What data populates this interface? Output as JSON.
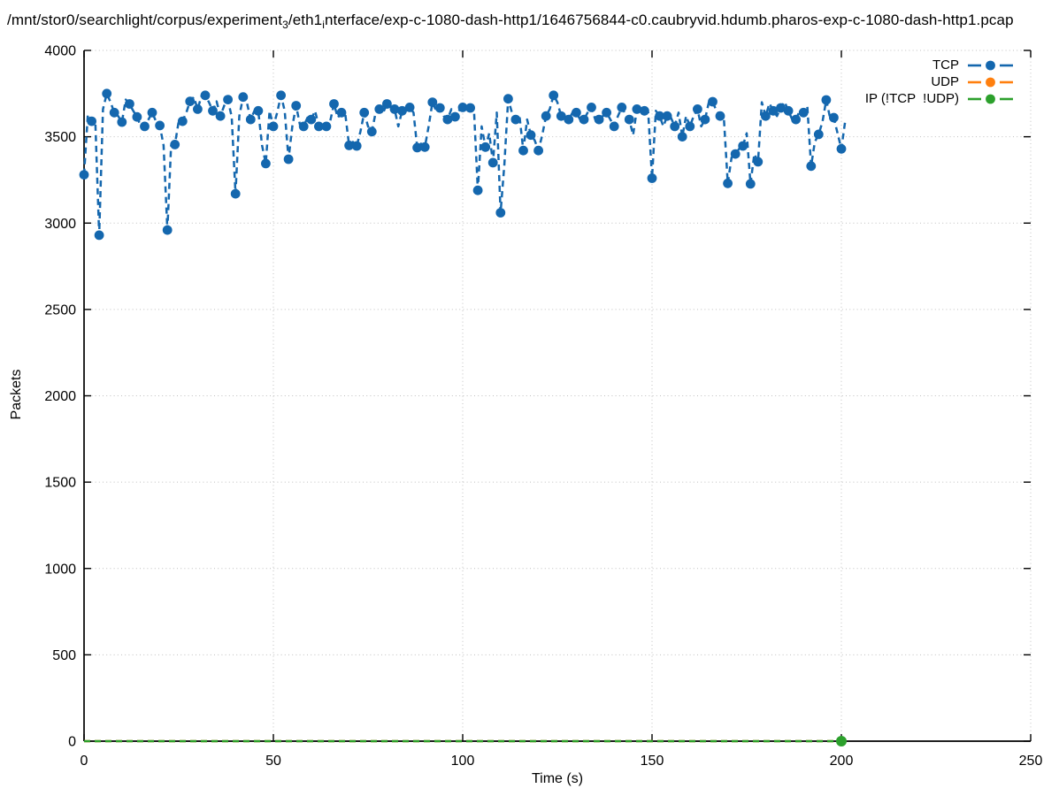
{
  "header": {
    "title_parts": {
      "p1": "/mnt/stor0/searchlight/corpus/experiment",
      "sub1": "3",
      "p2": "/eth1",
      "sub2": "i",
      "p3": "nterface/exp-c-1080-dash-http1/1646756844-c0.caubryvid.hdumb.pharos-exp-c-1080-dash-http1.pcap"
    }
  },
  "chart_data": {
    "type": "line",
    "title": "/mnt/stor0/searchlight/corpus/experiment_3/eth1_interface/exp-c-1080-dash-http1/1646756844-c0.caubryvid.hdumb.pharos-exp-c-1080-dash-http1.pcap",
    "xlabel": "Time (s)",
    "ylabel": "Packets",
    "xlim": [
      0,
      250
    ],
    "ylim": [
      0,
      4000
    ],
    "xticks": [
      0,
      50,
      100,
      150,
      200,
      250
    ],
    "yticks": [
      0,
      500,
      1000,
      1500,
      2000,
      2500,
      3000,
      3500,
      4000
    ],
    "grid": true,
    "grid_color": "#bfbfbf",
    "legend_position": "top-right-inside",
    "series": [
      {
        "name": "TCP",
        "color": "#1467ae",
        "line_style": "dashed",
        "marker": "circle",
        "marker_every": 2,
        "x_start": 0,
        "x_step": 1,
        "values": [
          3280,
          3630,
          3590,
          3580,
          2930,
          3660,
          3750,
          3700,
          3640,
          3620,
          3585,
          3715,
          3690,
          3650,
          3615,
          3560,
          3560,
          3600,
          3640,
          3590,
          3565,
          3450,
          2960,
          3450,
          3455,
          3590,
          3590,
          3640,
          3705,
          3730,
          3660,
          3735,
          3740,
          3700,
          3650,
          3705,
          3620,
          3680,
          3715,
          3615,
          3170,
          3620,
          3730,
          3700,
          3600,
          3650,
          3650,
          3450,
          3345,
          3650,
          3560,
          3640,
          3740,
          3650,
          3370,
          3560,
          3680,
          3570,
          3560,
          3610,
          3600,
          3650,
          3560,
          3580,
          3560,
          3590,
          3690,
          3610,
          3640,
          3630,
          3450,
          3470,
          3447,
          3530,
          3640,
          3560,
          3530,
          3640,
          3660,
          3640,
          3690,
          3670,
          3660,
          3560,
          3650,
          3650,
          3670,
          3640,
          3437,
          3460,
          3440,
          3560,
          3700,
          3650,
          3667,
          3620,
          3600,
          3660,
          3616,
          3650,
          3670,
          3660,
          3667,
          3650,
          3190,
          3560,
          3440,
          3520,
          3350,
          3640,
          3060,
          3340,
          3720,
          3640,
          3600,
          3620,
          3420,
          3600,
          3510,
          3480,
          3420,
          3510,
          3620,
          3660,
          3740,
          3700,
          3620,
          3600,
          3600,
          3640,
          3640,
          3600,
          3600,
          3640,
          3670,
          3600,
          3600,
          3620,
          3640,
          3600,
          3560,
          3620,
          3670,
          3630,
          3600,
          3510,
          3660,
          3650,
          3650,
          3640,
          3260,
          3650,
          3620,
          3560,
          3620,
          3610,
          3560,
          3640,
          3500,
          3620,
          3560,
          3620,
          3660,
          3560,
          3600,
          3700,
          3703,
          3650,
          3620,
          3600,
          3230,
          3380,
          3400,
          3430,
          3447,
          3520,
          3227,
          3400,
          3355,
          3700,
          3620,
          3693,
          3650,
          3620,
          3667,
          3703,
          3650,
          3600,
          3600,
          3650,
          3640,
          3677,
          3330,
          3470,
          3514,
          3585,
          3713,
          3611,
          3611,
          3520,
          3430,
          3590
        ]
      },
      {
        "name": "UDP",
        "color": "#ff7f0e",
        "line_style": "dashed",
        "marker": "circle",
        "x": [
          0,
          201
        ],
        "values": [
          0,
          0
        ],
        "markers_x": []
      },
      {
        "name": "IP (!TCP  !UDP)",
        "color": "#2ca02c",
        "line_style": "dashed",
        "marker": "circle",
        "x": [
          0,
          201
        ],
        "values": [
          0,
          0
        ],
        "markers_x": [
          200
        ]
      }
    ]
  }
}
